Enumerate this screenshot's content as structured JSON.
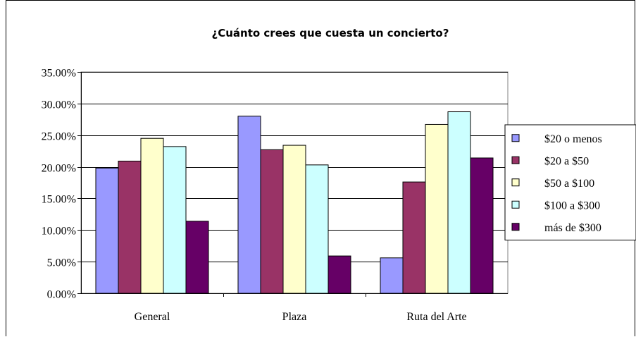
{
  "chart_data": {
    "type": "bar",
    "title": "¿Cuánto crees que cuesta un concierto?",
    "xlabel": "",
    "ylabel": "",
    "categories": [
      "General",
      "Plaza",
      "Ruta del Arte"
    ],
    "ylim": [
      0,
      35
    ],
    "yticks": [
      0,
      5,
      10,
      15,
      20,
      25,
      30,
      35
    ],
    "ytick_labels": [
      "0.00%",
      "5.00%",
      "10.00%",
      "15.00%",
      "20.00%",
      "25.00%",
      "30.00%",
      "35.00%"
    ],
    "grid": true,
    "legend_position": "right",
    "series": [
      {
        "name": "$20 o menos",
        "color": "#9999FF",
        "values": [
          19.8,
          28.0,
          5.6
        ]
      },
      {
        "name": "$20 a $50",
        "color": "#993366",
        "values": [
          20.9,
          22.7,
          17.6
        ]
      },
      {
        "name": "$50 a $100",
        "color": "#FFFFCC",
        "values": [
          24.5,
          23.4,
          26.7
        ]
      },
      {
        "name": "$100 a $300",
        "color": "#CCFFFF",
        "values": [
          23.2,
          20.3,
          28.7
        ]
      },
      {
        "name": "más de $300",
        "color": "#660066",
        "values": [
          11.4,
          5.9,
          21.4
        ]
      }
    ]
  }
}
